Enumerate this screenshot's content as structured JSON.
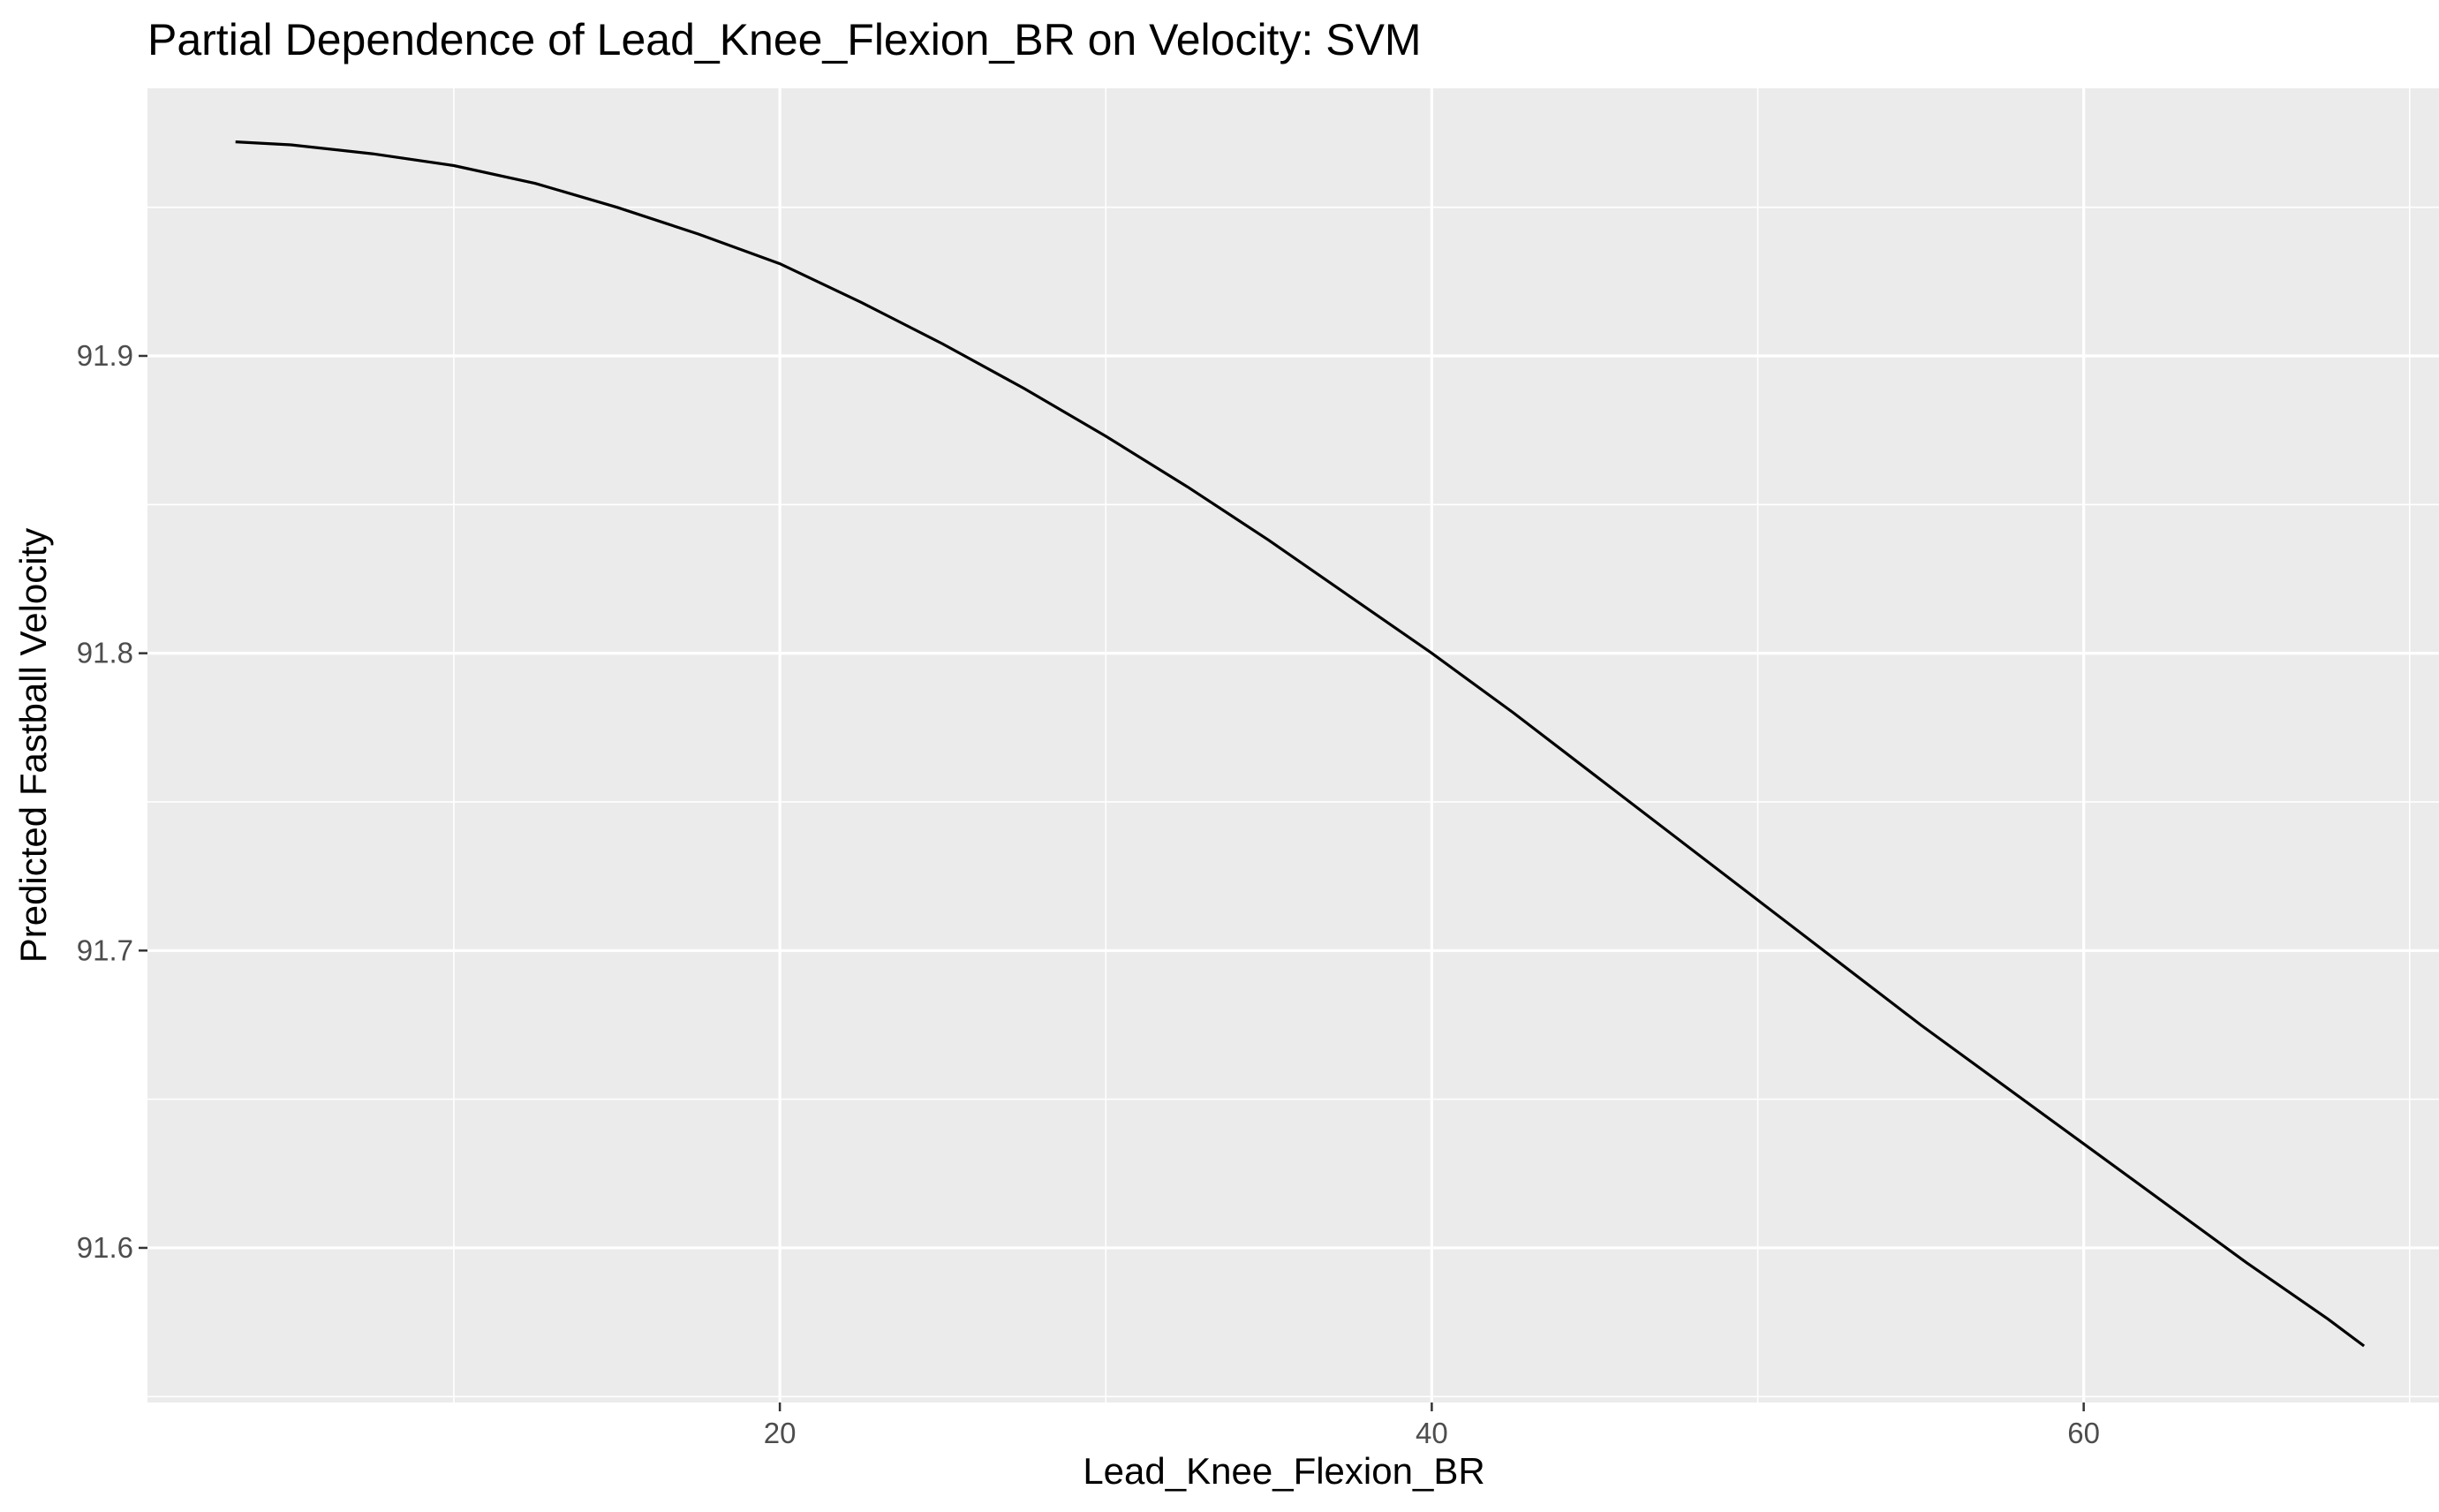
{
  "chart_data": {
    "type": "line",
    "title": "Partial Dependence of Lead_Knee_Flexion_BR on Velocity: SVM",
    "xlabel": "Lead_Knee_Flexion_BR",
    "ylabel": "Predicted Fastball Velocity",
    "xlim": [
      0.6,
      70.9
    ],
    "ylim": [
      91.548,
      91.99
    ],
    "x_ticks": [
      20,
      40,
      60
    ],
    "x_tick_labels": [
      "20",
      "40",
      "60"
    ],
    "x_minor_ticks": [
      10,
      30,
      50,
      70
    ],
    "y_ticks": [
      91.6,
      91.7,
      91.8,
      91.9
    ],
    "y_tick_labels": [
      "91.6",
      "91.7",
      "91.8",
      "91.9"
    ],
    "y_minor_ticks": [
      91.55,
      91.65,
      91.75,
      91.85,
      91.95
    ],
    "grid": true,
    "legend": "none",
    "colors": {
      "panel": "#ebebeb",
      "grid": "#ffffff",
      "line": "#000000",
      "tick_text": "#4d4d4d"
    },
    "series": [
      {
        "x": [
          3.3,
          5,
          7.5,
          10,
          12.5,
          15,
          17.5,
          20,
          22.5,
          25,
          27.5,
          30,
          32.5,
          35,
          37.5,
          40,
          42.5,
          45,
          47.5,
          50,
          52.5,
          55,
          57.5,
          60,
          62.5,
          65,
          67.5,
          68.6
        ],
        "y": [
          91.972,
          91.971,
          91.968,
          91.964,
          91.958,
          91.95,
          91.941,
          91.931,
          91.918,
          91.904,
          91.889,
          91.873,
          91.856,
          91.838,
          91.819,
          91.8,
          91.78,
          91.759,
          91.738,
          91.717,
          91.696,
          91.675,
          91.655,
          91.635,
          91.615,
          91.595,
          91.576,
          91.567
        ]
      }
    ]
  }
}
